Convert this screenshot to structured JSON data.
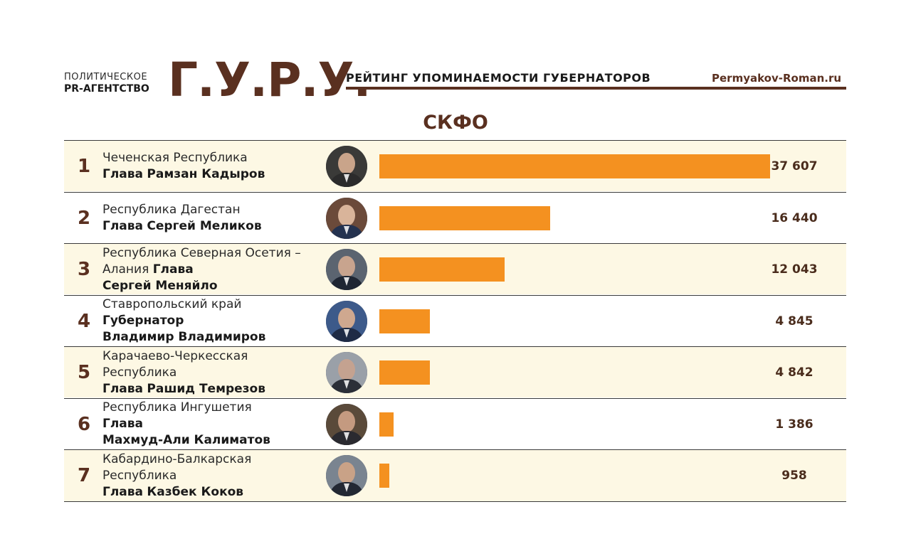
{
  "header": {
    "agency_line1": "ПОЛИТИЧЕСКОЕ",
    "agency_line2": "PR-АГЕНТСТВО",
    "logo": "Г.У.Р.У.",
    "rating_title": "РЕЙТИНГ УПОМИНАЕМОСТИ ГУБЕРНАТОРОВ",
    "site": "Permyakov-Roman.ru"
  },
  "colors": {
    "brand": "#5a3020",
    "bar": "#f49120",
    "row_shade": "#fdf8e4"
  },
  "chart_data": {
    "type": "bar",
    "title": "СКФО",
    "max_value": 37607,
    "rows": [
      {
        "rank": "1",
        "region": "Чеченская Республика",
        "title": "Глава",
        "name": "Рамзан Кадыров",
        "value": 37607,
        "value_label": "37 607",
        "avatar_icon": "portrait-icon"
      },
      {
        "rank": "2",
        "region": "Республика Дагестан",
        "title": "Глава",
        "name": "Сергей Меликов",
        "value": 16440,
        "value_label": "16 440",
        "avatar_icon": "portrait-icon"
      },
      {
        "rank": "3",
        "region": "Республика Северная Осетия – Алания",
        "title": "Глава",
        "name": "Сергей Меняйло",
        "value": 12043,
        "value_label": "12 043",
        "avatar_icon": "portrait-icon"
      },
      {
        "rank": "4",
        "region": "Ставропольский край",
        "title": "Губернатор",
        "name": "Владимир Владимиров",
        "value": 4845,
        "value_label": "4 845",
        "avatar_icon": "portrait-icon"
      },
      {
        "rank": "5",
        "region": "Карачаево-Черкесская Республика",
        "title": "Глава",
        "name": "Рашид Темрезов",
        "value": 4842,
        "value_label": "4 842",
        "avatar_icon": "portrait-icon"
      },
      {
        "rank": "6",
        "region": "Республика Ингушетия",
        "title": "Глава",
        "name": "Махмуд-Али Калиматов",
        "value": 1386,
        "value_label": "1 386",
        "avatar_icon": "portrait-icon"
      },
      {
        "rank": "7",
        "region": "Кабардино-Балкарская Республика",
        "title": "Глава",
        "name": "Казбек Коков",
        "value": 958,
        "value_label": "958",
        "avatar_icon": "portrait-icon"
      }
    ]
  }
}
